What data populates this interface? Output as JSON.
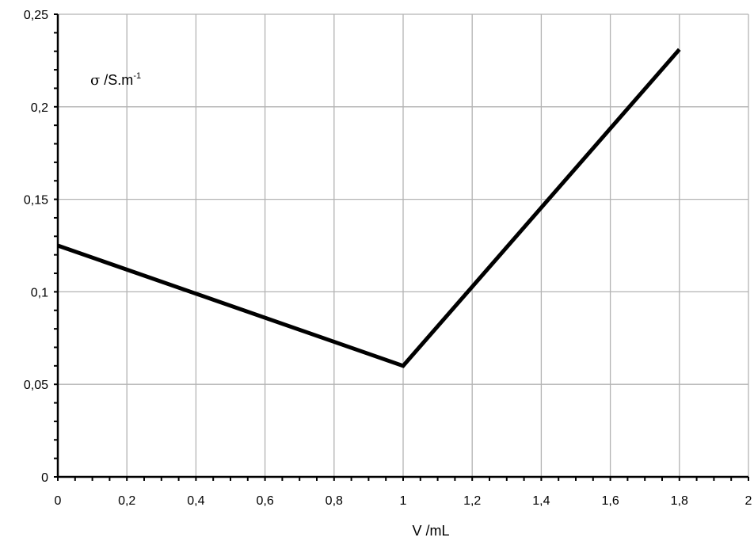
{
  "chart_data": {
    "type": "line",
    "title": "",
    "xlabel": "V /mL",
    "ylabel": {
      "symbol": "σ",
      "text": " /S.m",
      "superscript": "-1"
    },
    "xlim": [
      0,
      2
    ],
    "ylim": [
      0,
      0.25
    ],
    "grid": true,
    "x_ticks": [
      {
        "value": 0,
        "label": "0"
      },
      {
        "value": 0.2,
        "label": "0,2"
      },
      {
        "value": 0.4,
        "label": "0,4"
      },
      {
        "value": 0.6,
        "label": "0,6"
      },
      {
        "value": 0.8,
        "label": "0,8"
      },
      {
        "value": 1.0,
        "label": "1"
      },
      {
        "value": 1.2,
        "label": "1,2"
      },
      {
        "value": 1.4,
        "label": "1,4"
      },
      {
        "value": 1.6,
        "label": "1,6"
      },
      {
        "value": 1.8,
        "label": "1,8"
      },
      {
        "value": 2.0,
        "label": "2"
      }
    ],
    "y_ticks": [
      {
        "value": 0,
        "label": "0"
      },
      {
        "value": 0.05,
        "label": "0,05"
      },
      {
        "value": 0.1,
        "label": "0,1"
      },
      {
        "value": 0.15,
        "label": "0,15"
      },
      {
        "value": 0.2,
        "label": "0,2"
      },
      {
        "value": 0.25,
        "label": "0,25"
      }
    ],
    "series": [
      {
        "color": "#000000",
        "x": [
          0,
          1.0,
          1.8
        ],
        "y": [
          0.125,
          0.06,
          0.231
        ]
      }
    ]
  }
}
